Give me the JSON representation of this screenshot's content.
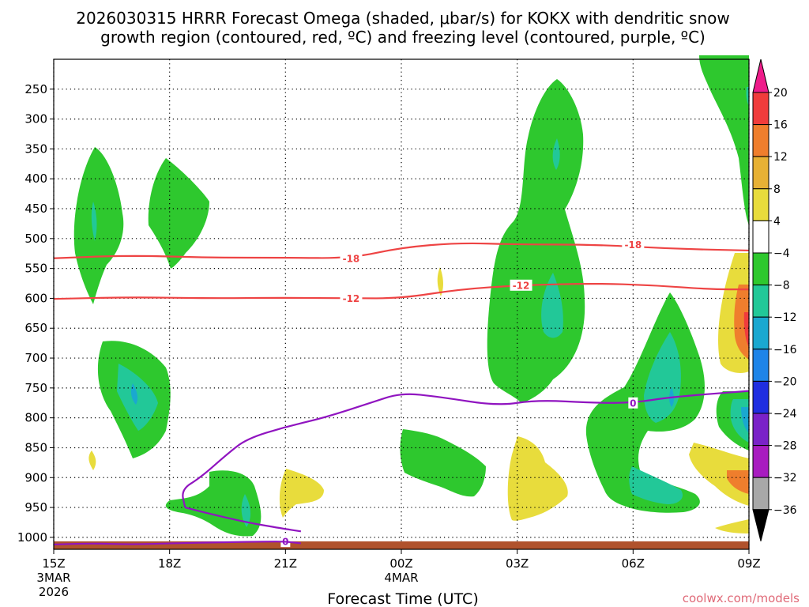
{
  "chart_data": {
    "type": "contour",
    "title_line1": "2026030315 HRRR Forecast Omega (shaded, μbar/s) for KOKX with dendritic snow",
    "title_line2": "growth region (contoured, red, ºC) and freezing level (contoured, purple, ºC)",
    "xlabel": "Forecast Time (UTC)",
    "x_ticks": [
      {
        "hour": 0,
        "label": "15Z",
        "sub1": "3MAR",
        "sub2": "2026"
      },
      {
        "hour": 3,
        "label": "18Z",
        "sub1": "",
        "sub2": ""
      },
      {
        "hour": 6,
        "label": "21Z",
        "sub1": "",
        "sub2": ""
      },
      {
        "hour": 9,
        "label": "00Z",
        "sub1": "4MAR",
        "sub2": ""
      },
      {
        "hour": 12,
        "label": "03Z",
        "sub1": "",
        "sub2": ""
      },
      {
        "hour": 15,
        "label": "06Z",
        "sub1": "",
        "sub2": ""
      },
      {
        "hour": 18,
        "label": "09Z",
        "sub1": "",
        "sub2": ""
      }
    ],
    "y_ticks": [
      250,
      300,
      350,
      400,
      450,
      500,
      550,
      600,
      650,
      700,
      750,
      800,
      850,
      900,
      950,
      1000
    ],
    "ylim": [
      200,
      1020
    ],
    "xlim": [
      0,
      18
    ],
    "colorbar": {
      "levels": [
        "20",
        "16",
        "12",
        "8",
        "4",
        "−4",
        "−8",
        "−12",
        "−16",
        "−20",
        "−24",
        "−28",
        "−32",
        "−36"
      ],
      "colors": [
        "#ee1c8a",
        "#f03c3c",
        "#ef7e2d",
        "#e7b135",
        "#e8dc3c",
        "#ffffff",
        "#2ec82e",
        "#22c898",
        "#1aa8d0",
        "#1e84e8",
        "#1f2ee0",
        "#7a22c8",
        "#a81cc0",
        "#a8a8a8",
        "#000000"
      ]
    },
    "contours": [
      {
        "name": "dgz-minus-18",
        "color": "#ee4444",
        "label": "-18",
        "label_points": [
          [
            7.7,
            533
          ],
          [
            15.0,
            510
          ]
        ],
        "points": [
          [
            0,
            533
          ],
          [
            2,
            528
          ],
          [
            4,
            532
          ],
          [
            6,
            532
          ],
          [
            7.7,
            533
          ],
          [
            9,
            515
          ],
          [
            10.5,
            507
          ],
          [
            12,
            510
          ],
          [
            14,
            510
          ],
          [
            16,
            517
          ],
          [
            18,
            520
          ]
        ]
      },
      {
        "name": "dgz-minus-12",
        "color": "#ee4444",
        "label": "-12",
        "label_points": [
          [
            7.7,
            600
          ],
          [
            12.1,
            578
          ]
        ],
        "points": [
          [
            0,
            601
          ],
          [
            2,
            598
          ],
          [
            4,
            600
          ],
          [
            6,
            599
          ],
          [
            7.7,
            600
          ],
          [
            9,
            600
          ],
          [
            10.5,
            585
          ],
          [
            12.1,
            578
          ],
          [
            14,
            575
          ],
          [
            15.5,
            578
          ],
          [
            17,
            585
          ],
          [
            18,
            585
          ]
        ]
      },
      {
        "name": "freezing-level",
        "color": "#9014c0",
        "label": "0",
        "label_points": [
          [
            15.0,
            775
          ],
          [
            6.0,
            1007
          ]
        ],
        "points": [
          [
            3.4,
            950
          ],
          [
            3.3,
            920
          ],
          [
            3.8,
            900
          ],
          [
            4.5,
            860
          ],
          [
            5,
            835
          ],
          [
            6,
            815
          ],
          [
            7,
            800
          ],
          [
            8.2,
            775
          ],
          [
            9,
            758
          ],
          [
            10,
            765
          ],
          [
            11.5,
            780
          ],
          [
            12.5,
            770
          ],
          [
            14,
            775
          ],
          [
            15,
            775
          ],
          [
            16,
            765
          ],
          [
            18,
            755
          ]
        ]
      },
      {
        "name": "freezing-level-return",
        "color": "#9014c0",
        "label": "",
        "label_points": [],
        "points": [
          [
            3.4,
            950
          ],
          [
            4,
            960
          ],
          [
            5,
            975
          ],
          [
            5.9,
            985
          ],
          [
            6.4,
            990
          ]
        ]
      },
      {
        "name": "freezing-level-surface",
        "color": "#9014c0",
        "label": "",
        "label_points": [],
        "points": [
          [
            0,
            1012
          ],
          [
            1,
            1010
          ],
          [
            2,
            1012
          ],
          [
            3,
            1010
          ],
          [
            4.5,
            1008
          ],
          [
            5.5,
            1007
          ],
          [
            6.0,
            1007
          ],
          [
            6.4,
            1010
          ]
        ]
      }
    ]
  },
  "credit": "coolwx.com/models"
}
